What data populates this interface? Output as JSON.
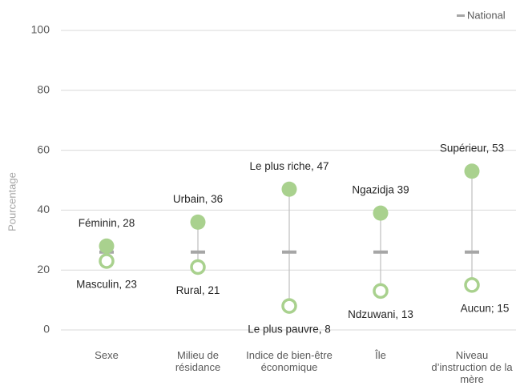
{
  "chart_data": {
    "type": "dot-range",
    "y_label": "Pourcentage",
    "categories": [
      "Sexe",
      "Milieu de résidance",
      "Indice de bien-être économique",
      "Île",
      "Niveau d’instruction de la mère"
    ],
    "ylim": [
      0,
      100
    ],
    "yticks": [
      0,
      20,
      40,
      60,
      80,
      100
    ],
    "grid": true,
    "legend": "top-right",
    "series": [
      {
        "color": "#a9d18e",
        "marker": "filled",
        "values": [
          28,
          36,
          47,
          39,
          53
        ],
        "value_labels": [
          "Féminin, 28",
          "Urbain, 36",
          "Le plus riche, 47",
          "Ngazidja 39",
          "Supérieur, 53"
        ]
      },
      {
        "color": "#a9d18e",
        "marker": "hollow",
        "values": [
          23,
          21,
          8,
          13,
          15
        ],
        "value_labels": [
          "Masculin, 23",
          "Rural, 21",
          "Le plus pauvre, 8",
          "Ndzuwani, 13",
          "Aucun; 15"
        ]
      },
      {
        "name": "National",
        "color": "#a6a6a6",
        "marker": "dash",
        "values": [
          26,
          26,
          26,
          26,
          26
        ]
      }
    ]
  }
}
